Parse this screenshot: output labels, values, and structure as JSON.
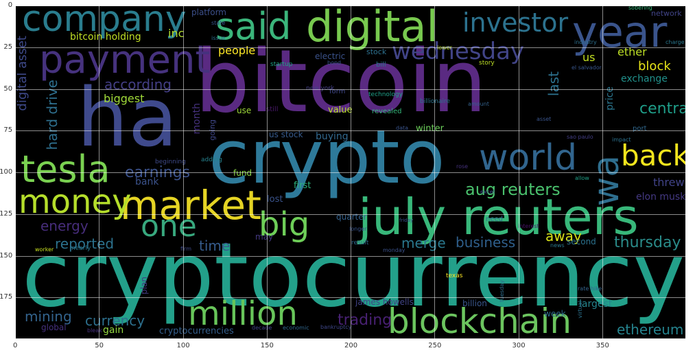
{
  "axes": {
    "x_ticks": [
      "0",
      "50",
      "100",
      "150",
      "200",
      "250",
      "300",
      "350"
    ],
    "y_ticks": [
      "0",
      "25",
      "50",
      "75",
      "100",
      "125",
      "150",
      "175"
    ],
    "x_range": [
      0,
      400
    ],
    "y_range": [
      0,
      200
    ],
    "grid": true,
    "grid_color": "#ffffff"
  },
  "colormap": "viridis",
  "background": "#000000",
  "words": [
    {
      "text": "cryptocurrency",
      "color": "#23a08a"
    },
    {
      "text": "bitcoin",
      "color": "#5a2a82"
    },
    {
      "text": "crypto",
      "color": "#2e7a9a"
    },
    {
      "text": "ha",
      "color": "#3f4a8c"
    },
    {
      "text": "july reuters",
      "color": "#38b77a"
    },
    {
      "text": "market",
      "color": "#e5d424"
    },
    {
      "text": "digital",
      "color": "#78c94f"
    },
    {
      "text": "company",
      "color": "#2a7d8e"
    },
    {
      "text": "payment",
      "color": "#46327e"
    },
    {
      "text": "said",
      "color": "#3bb57b"
    },
    {
      "text": "year",
      "color": "#3a548c"
    },
    {
      "text": "blockchain",
      "color": "#6cc55f"
    },
    {
      "text": "million",
      "color": "#68c55a"
    },
    {
      "text": "tesla",
      "color": "#7ad151"
    },
    {
      "text": "money",
      "color": "#b5de2b"
    },
    {
      "text": "world",
      "color": "#31658e"
    },
    {
      "text": "back",
      "color": "#f2e51d"
    },
    {
      "text": "big",
      "color": "#6ece58"
    },
    {
      "text": "one",
      "color": "#38a87e"
    },
    {
      "text": "wa",
      "color": "#2e6e8e"
    },
    {
      "text": "investor",
      "color": "#2c728e"
    },
    {
      "text": "wednesday",
      "color": "#414487"
    },
    {
      "text": "aug reuters",
      "color": "#4ac16d"
    },
    {
      "text": "business",
      "color": "#2f5f8c"
    },
    {
      "text": "thursday",
      "color": "#2a8c8a"
    },
    {
      "text": "earnings",
      "color": "#3b528b"
    },
    {
      "text": "central",
      "color": "#1f9e89"
    },
    {
      "text": "according",
      "color": "#433e85"
    },
    {
      "text": "trading",
      "color": "#482173"
    },
    {
      "text": "ethereum",
      "color": "#25838e"
    },
    {
      "text": "mining",
      "color": "#33638d"
    },
    {
      "text": "currency",
      "color": "#2d708e"
    },
    {
      "text": "reported",
      "color": "#2c728e"
    },
    {
      "text": "merge",
      "color": "#2a788e"
    },
    {
      "text": "energy",
      "color": "#472d7b"
    },
    {
      "text": "time",
      "color": "#365c8d"
    },
    {
      "text": "away",
      "color": "#d8e219"
    },
    {
      "text": "block",
      "color": "#e7e419"
    },
    {
      "text": "exchange",
      "color": "#21918c"
    },
    {
      "text": "biggest",
      "color": "#a0da39"
    },
    {
      "text": "people",
      "color": "#fde725"
    },
    {
      "text": "hard drive",
      "color": "#2e6f8e"
    },
    {
      "text": "digital asset",
      "color": "#3e4989"
    },
    {
      "text": "bitcoin holding",
      "color": "#c0df25"
    },
    {
      "text": "inc",
      "color": "#b2dd2d"
    },
    {
      "text": "ether",
      "color": "#bddf26"
    },
    {
      "text": "us",
      "color": "#c2df23"
    },
    {
      "text": "last",
      "color": "#2c718e"
    },
    {
      "text": "threw",
      "color": "#404387"
    },
    {
      "text": "elon musk",
      "color": "#443983"
    },
    {
      "text": "bank",
      "color": "#3b528b"
    },
    {
      "text": "largest",
      "color": "#25858e"
    },
    {
      "text": "week",
      "color": "#2f6c8e"
    },
    {
      "text": "gain",
      "color": "#93d741"
    },
    {
      "text": "cryptocurrencies",
      "color": "#355f8d"
    },
    {
      "text": "james howells",
      "color": "#414487"
    },
    {
      "text": "billion",
      "color": "#39568c"
    },
    {
      "text": "global",
      "color": "#46307e"
    },
    {
      "text": "fund",
      "color": "#8bd646"
    },
    {
      "text": "first",
      "color": "#2db27d"
    },
    {
      "text": "lost",
      "color": "#3a538b"
    },
    {
      "text": "value",
      "color": "#b8de29"
    },
    {
      "text": "buying",
      "color": "#31688e"
    },
    {
      "text": "winter",
      "color": "#6ccd5a"
    },
    {
      "text": "second",
      "color": "#2c728e"
    },
    {
      "text": "quarter",
      "color": "#34618d"
    },
    {
      "text": "may",
      "color": "#443a83"
    },
    {
      "text": "use",
      "color": "#9fda3a"
    },
    {
      "text": "still",
      "color": "#48186a"
    },
    {
      "text": "us stock",
      "color": "#375b8d"
    },
    {
      "text": "month",
      "color": "#46327e"
    },
    {
      "text": "going",
      "color": "#3f4788"
    },
    {
      "text": "adding",
      "color": "#26828e"
    },
    {
      "text": "beginning",
      "color": "#3e4a89"
    },
    {
      "text": "platform",
      "color": "#3c4f8a"
    },
    {
      "text": "network",
      "color": "#414487"
    },
    {
      "text": "electric",
      "color": "#3b528b"
    },
    {
      "text": "stock",
      "color": "#2d708e"
    },
    {
      "text": "bill",
      "color": "#2a768e"
    },
    {
      "text": "startup",
      "color": "#20a386"
    },
    {
      "text": "bond",
      "color": "#3a548c"
    },
    {
      "text": "story",
      "color": "#bddf26"
    },
    {
      "text": "new york",
      "color": "#433e85"
    },
    {
      "text": "form",
      "color": "#3f4788"
    },
    {
      "text": "technology",
      "color": "#1fa088"
    },
    {
      "text": "billionaire",
      "color": "#2c738e"
    },
    {
      "text": "revealed",
      "color": "#35b779"
    },
    {
      "text": "amount",
      "color": "#34618d"
    },
    {
      "text": "data",
      "color": "#3a548c"
    },
    {
      "text": "price",
      "color": "#2b758e"
    },
    {
      "text": "port",
      "color": "#31688e"
    },
    {
      "text": "industry",
      "color": "#2d708e"
    },
    {
      "text": "el salvador",
      "color": "#39568c"
    },
    {
      "text": "charge",
      "color": "#2a788e"
    },
    {
      "text": "friday",
      "color": "#3b528b"
    },
    {
      "text": "interest",
      "color": "#481467"
    },
    {
      "text": "need",
      "color": "#2e6e8e"
    },
    {
      "text": "rate hike",
      "color": "#33638d"
    },
    {
      "text": "plan",
      "color": "#443a83"
    },
    {
      "text": "virtual",
      "color": "#2c728e"
    },
    {
      "text": "bankruptcy",
      "color": "#3f4788"
    },
    {
      "text": "economic",
      "color": "#31688e"
    },
    {
      "text": "decade",
      "color": "#414487"
    },
    {
      "text": "bleak",
      "color": "#46327e"
    },
    {
      "text": "worker",
      "color": "#c8e020"
    },
    {
      "text": "nearly",
      "color": "#2a788e"
    },
    {
      "text": "firm",
      "color": "#3e4a89"
    },
    {
      "text": "result",
      "color": "#31688e"
    },
    {
      "text": "monday",
      "color": "#3b528b"
    },
    {
      "text": "tuesday",
      "color": "#2e6e8e"
    },
    {
      "text": "longer",
      "color": "#3a548c"
    },
    {
      "text": "texas",
      "color": "#fde725"
    },
    {
      "text": "sao paulo",
      "color": "#433e85"
    },
    {
      "text": "impact",
      "color": "#2c728e"
    },
    {
      "text": "sobering",
      "color": "#35b779"
    },
    {
      "text": "state",
      "color": "#39568c"
    },
    {
      "text": "issue",
      "color": "#2d708e"
    },
    {
      "text": "allow",
      "color": "#1fa088"
    },
    {
      "text": "rose",
      "color": "#46327e"
    },
    {
      "text": "asset",
      "color": "#3a548c"
    },
    {
      "text": "lower",
      "color": "#bddf26"
    },
    {
      "text": "news",
      "color": "#2a788e"
    },
    {
      "text": "excel",
      "color": "#3e4a89"
    }
  ]
}
